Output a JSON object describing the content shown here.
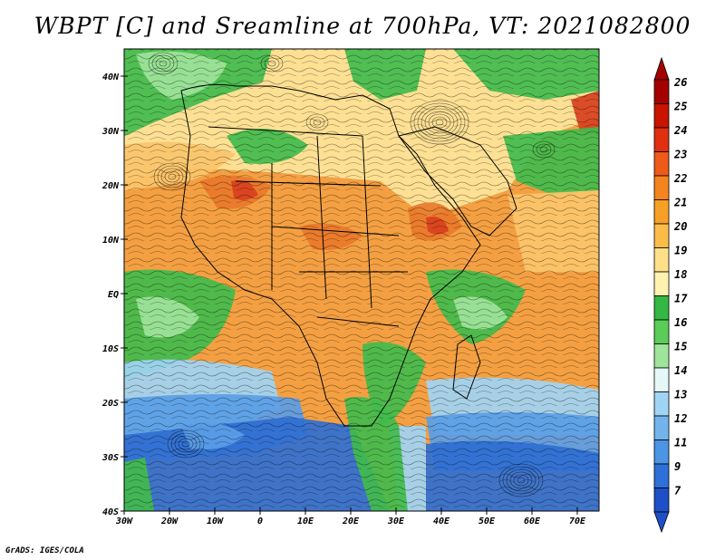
{
  "title": "WBPT [C] and Sreamline at 700hPa, VT: 2021082800",
  "credit": "GrADS: IGES/COLA",
  "lat_labels": [
    "40N",
    "30N",
    "20N",
    "10N",
    "EQ",
    "10S",
    "20S",
    "30S",
    "40S"
  ],
  "lon_labels": [
    "30W",
    "20W",
    "10W",
    "0",
    "10E",
    "20E",
    "30E",
    "40E",
    "50E",
    "60E",
    "70E"
  ],
  "colorbar": {
    "labels": [
      "26",
      "25",
      "24",
      "23",
      "22",
      "21",
      "20",
      "19",
      "18",
      "17",
      "16",
      "15",
      "14",
      "13",
      "12",
      "11",
      "9",
      "7"
    ],
    "colors": [
      "#a50000",
      "#c81400",
      "#e03010",
      "#ee5a18",
      "#f4841e",
      "#f8a026",
      "#fbbd48",
      "#fde088",
      "#fff2b0",
      "#33b844",
      "#5acc58",
      "#9ee49a",
      "#e4f8f8",
      "#a0d4f4",
      "#74b4ec",
      "#4c94e4",
      "#2e70d8",
      "#1e4fc6"
    ]
  },
  "map_features": {
    "fill_colors": {
      "deep_orange": "#e8782a",
      "orange": "#f4a042",
      "light_orange": "#fbc46a",
      "yellow": "#fde59a",
      "green": "#41bb4c",
      "light_green": "#9ee49a",
      "light_blue": "#a0d4f4",
      "blue": "#5a9de6",
      "dark_blue": "#2f6fd2",
      "red": "#d8401e"
    },
    "streamline_color": "#000000",
    "border_color": "#000000"
  }
}
